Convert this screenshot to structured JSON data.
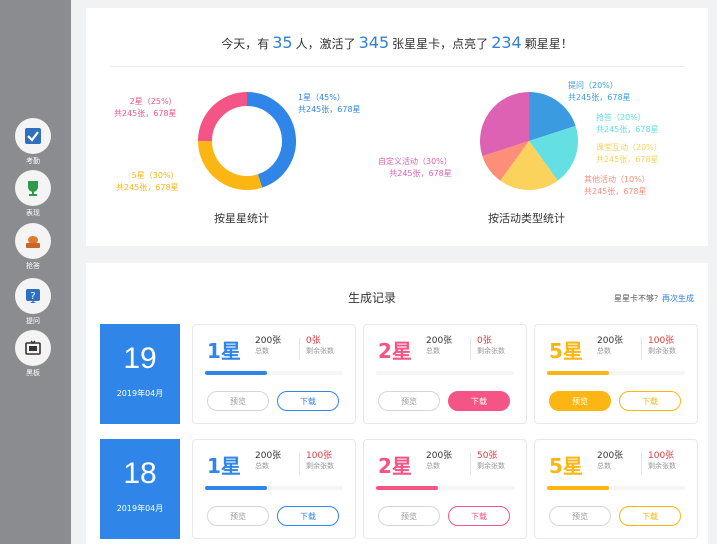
{
  "sidebar": {
    "items": [
      {
        "label": "考勤",
        "icon": "checkbox-icon"
      },
      {
        "label": "表现",
        "icon": "trophy-icon"
      },
      {
        "label": "抢答",
        "icon": "buzzer-icon"
      },
      {
        "label": "提问",
        "icon": "question-icon"
      },
      {
        "label": "黑板",
        "icon": "blackboard-icon"
      }
    ]
  },
  "summary": {
    "t1": "今天，有",
    "people": "35",
    "t2": "人，激活了",
    "cards": "345",
    "t3": "张星星卡，点亮了",
    "stars": "234",
    "t4": "颗星星！"
  },
  "star_chart": {
    "title": "按星星统计",
    "slices": [
      {
        "name": "1星（45%）",
        "detail": "共245张，678星",
        "value": 45,
        "color": "#2f86e8"
      },
      {
        "name": "5星（30%）",
        "detail": "共245张，678星",
        "value": 30,
        "color": "#fbb614"
      },
      {
        "name": "2星（25%）",
        "detail": "共245张，678星",
        "value": 25,
        "color": "#f45586"
      }
    ]
  },
  "type_chart": {
    "title": "按活动类型统计",
    "slices": [
      {
        "name": "提问（20%）",
        "detail": "共245张，678星",
        "value": 20,
        "color": "#3a9be0"
      },
      {
        "name": "抢答（20%）",
        "detail": "共245张，678星",
        "value": 20,
        "color": "#64e0e2"
      },
      {
        "name": "课堂互动（20%）",
        "detail": "共245张，678星",
        "value": 20,
        "color": "#fbd25c"
      },
      {
        "name": "其他活动（10%）",
        "detail": "共245张，678星",
        "value": 10,
        "color": "#fd8e78"
      },
      {
        "name": "自定义活动（30%）",
        "detail": "共245张，678星",
        "value": 30,
        "color": "#de62b3"
      }
    ]
  },
  "records": {
    "title": "生成记录",
    "note": "星星卡不够？",
    "regen": "再次生成",
    "preview_label": "预览",
    "download_label": "下载",
    "total_sub": "总数",
    "remain_sub": "剩余张数",
    "days": [
      {
        "day": "19",
        "month": "2019年04月",
        "cards": [
          {
            "star": "1星",
            "total": "200张",
            "remain": "0张",
            "progress": 0.45,
            "color": "#2f86e8",
            "active_btn": "none"
          },
          {
            "star": "2星",
            "total": "200张",
            "remain": "0张",
            "progress": 0,
            "color": "#f45586",
            "active_btn": "download"
          },
          {
            "star": "5星",
            "total": "200张",
            "remain": "100张",
            "progress": 0.45,
            "color": "#fbb614",
            "active_btn": "preview"
          }
        ]
      },
      {
        "day": "18",
        "month": "2019年04月",
        "cards": [
          {
            "star": "1星",
            "total": "200张",
            "remain": "100张",
            "progress": 0.45,
            "color": "#2f86e8",
            "active_btn": "none"
          },
          {
            "star": "2星",
            "total": "200张",
            "remain": "50张",
            "progress": 0.45,
            "color": "#f45586",
            "active_btn": "none"
          },
          {
            "star": "5星",
            "total": "200张",
            "remain": "100张",
            "progress": 0.45,
            "color": "#fbb614",
            "active_btn": "none"
          }
        ]
      }
    ]
  }
}
